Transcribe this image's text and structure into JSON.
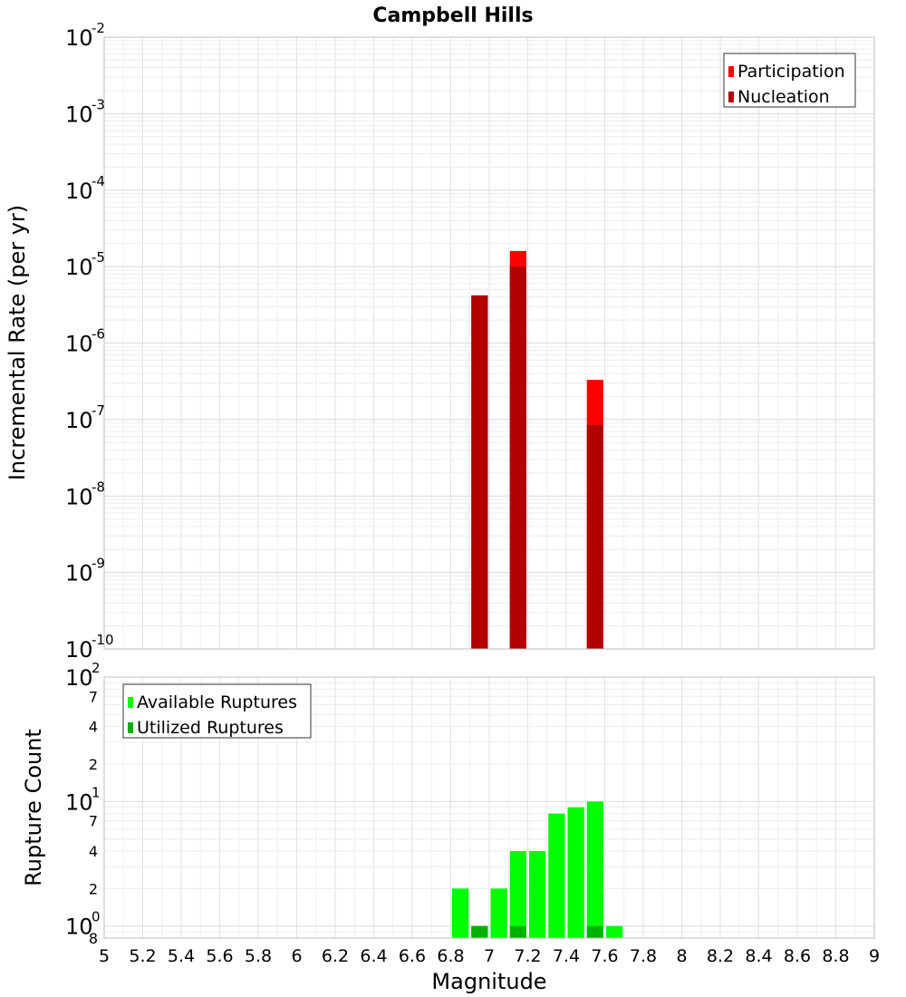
{
  "chart_data": [
    {
      "type": "bar",
      "title": "Campbell Hills",
      "xlabel": "",
      "ylabel": "Incremental Rate (per yr)",
      "xlim": [
        5,
        9
      ],
      "ylim": [
        1e-10,
        0.01
      ],
      "yscale": "log",
      "grid": true,
      "legend_position": "top-right",
      "bar_width": 0.1,
      "series": [
        {
          "name": "Participation",
          "color": "#ff0000",
          "x": [
            6.95,
            7.15,
            7.55
          ],
          "values": [
            4.2e-06,
            1.6e-05,
            3.3e-07
          ]
        },
        {
          "name": "Nucleation",
          "color": "#b20000",
          "x": [
            6.95,
            7.15,
            7.55
          ],
          "values": [
            4.2e-06,
            1e-05,
            8.5e-08
          ]
        }
      ],
      "y_ticks": [
        {
          "base": "10",
          "exp": "-2",
          "value": 0.01
        },
        {
          "base": "10",
          "exp": "-3",
          "value": 0.001
        },
        {
          "base": "10",
          "exp": "-4",
          "value": 0.0001
        },
        {
          "base": "10",
          "exp": "-5",
          "value": 1e-05
        },
        {
          "base": "10",
          "exp": "-6",
          "value": 1e-06
        },
        {
          "base": "10",
          "exp": "-7",
          "value": 1e-07
        },
        {
          "base": "10",
          "exp": "-8",
          "value": 1e-08
        },
        {
          "base": "10",
          "exp": "-9",
          "value": 1e-09
        },
        {
          "base": "10",
          "exp": "-10",
          "value": 1e-10
        }
      ]
    },
    {
      "type": "bar",
      "title": "",
      "xlabel": "Magnitude",
      "ylabel": "Rupture Count",
      "xlim": [
        5,
        9
      ],
      "ylim": [
        0.8,
        100
      ],
      "yscale": "log",
      "grid": true,
      "legend_position": "top-left",
      "bar_width": 0.1,
      "series": [
        {
          "name": "Available Ruptures",
          "color": "#00ff00",
          "x": [
            6.85,
            6.95,
            7.05,
            7.15,
            7.25,
            7.35,
            7.45,
            7.55,
            7.65
          ],
          "values": [
            2,
            1,
            2,
            4,
            4,
            8,
            9,
            10,
            1
          ]
        },
        {
          "name": "Utilized Ruptures",
          "color": "#00b200",
          "x": [
            6.95,
            7.15,
            7.55
          ],
          "values": [
            1,
            1,
            1
          ]
        }
      ],
      "y_ticks": [
        {
          "base": "10",
          "exp": "2",
          "value": 100
        },
        {
          "base": "10",
          "exp": "1",
          "value": 10
        },
        {
          "base": "10",
          "exp": "0",
          "value": 1
        }
      ],
      "y_minor_ticks": [
        {
          "label": "7",
          "value": 70
        },
        {
          "label": "4",
          "value": 40
        },
        {
          "label": "2",
          "value": 20
        },
        {
          "label": "7",
          "value": 7
        },
        {
          "label": "4",
          "value": 4
        },
        {
          "label": "2",
          "value": 2
        },
        {
          "label": "8",
          "value": 0.8
        }
      ],
      "x_ticks": [
        "5",
        "5.2",
        "5.4",
        "5.6",
        "5.8",
        "6",
        "6.2",
        "6.4",
        "6.6",
        "6.8",
        "7",
        "7.2",
        "7.4",
        "7.6",
        "7.8",
        "8",
        "8.2",
        "8.4",
        "8.6",
        "8.8",
        "9"
      ]
    }
  ]
}
